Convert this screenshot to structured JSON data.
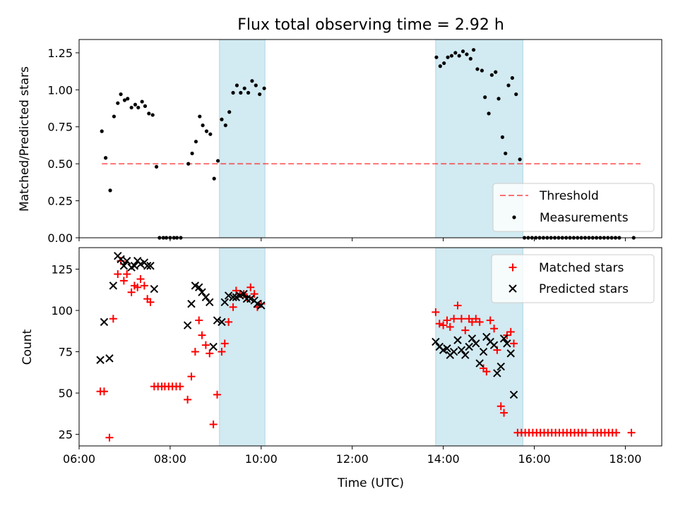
{
  "title": "Flux total observing time = 2.92 h",
  "colors": {
    "shade": "#add8e6",
    "threshold": "#ff0000",
    "measurement": "#000000",
    "matched": "#ff0000",
    "predicted": "#000000"
  },
  "chart_data": [
    {
      "type": "scatter",
      "panel": "top",
      "ylabel": "Matched/Predicted stars",
      "ylim": [
        0,
        1.34
      ],
      "yticks": [
        "0.00",
        "0.25",
        "0.50",
        "0.75",
        "1.00",
        "1.25"
      ],
      "xlim": [
        "06:00",
        "18:48"
      ],
      "legend": {
        "placement": "lower-right",
        "entries": [
          "Threshold",
          "Measurements"
        ]
      },
      "threshold": {
        "name": "Threshold",
        "y": 0.5,
        "x_range": [
          "06:30",
          "18:20"
        ]
      },
      "shaded_intervals": [
        [
          "09:05",
          "10:05"
        ],
        [
          "13:50",
          "15:45"
        ]
      ],
      "series": [
        {
          "name": "Measurements",
          "points": [
            [
              "06:30",
              0.72
            ],
            [
              "06:35",
              0.54
            ],
            [
              "06:41",
              0.32
            ],
            [
              "06:46",
              0.82
            ],
            [
              "06:51",
              0.91
            ],
            [
              "06:55",
              0.97
            ],
            [
              "07:00",
              0.93
            ],
            [
              "07:04",
              0.94
            ],
            [
              "07:09",
              0.88
            ],
            [
              "07:14",
              0.9
            ],
            [
              "07:18",
              0.88
            ],
            [
              "07:23",
              0.92
            ],
            [
              "07:27",
              0.89
            ],
            [
              "07:32",
              0.84
            ],
            [
              "07:37",
              0.83
            ],
            [
              "07:42",
              0.48
            ],
            [
              "07:46",
              0.0
            ],
            [
              "07:51",
              0.0
            ],
            [
              "07:55",
              0.0
            ],
            [
              "08:00",
              0.0
            ],
            [
              "08:05",
              0.0
            ],
            [
              "08:09",
              0.0
            ],
            [
              "08:14",
              0.0
            ],
            [
              "08:24",
              0.5
            ],
            [
              "08:29",
              0.57
            ],
            [
              "08:34",
              0.65
            ],
            [
              "08:39",
              0.82
            ],
            [
              "08:43",
              0.76
            ],
            [
              "08:48",
              0.72
            ],
            [
              "08:53",
              0.7
            ],
            [
              "08:58",
              0.4
            ],
            [
              "09:03",
              0.52
            ],
            [
              "09:08",
              0.8
            ],
            [
              "09:13",
              0.76
            ],
            [
              "09:18",
              0.85
            ],
            [
              "09:23",
              0.98
            ],
            [
              "09:28",
              1.03
            ],
            [
              "09:33",
              0.98
            ],
            [
              "09:38",
              1.01
            ],
            [
              "09:43",
              0.98
            ],
            [
              "09:48",
              1.06
            ],
            [
              "09:53",
              1.03
            ],
            [
              "09:58",
              0.97
            ],
            [
              "10:04",
              1.01
            ],
            [
              "13:51",
              1.22
            ],
            [
              "13:56",
              1.16
            ],
            [
              "14:01",
              1.18
            ],
            [
              "14:06",
              1.22
            ],
            [
              "14:11",
              1.23
            ],
            [
              "14:16",
              1.25
            ],
            [
              "14:21",
              1.23
            ],
            [
              "14:26",
              1.26
            ],
            [
              "14:31",
              1.24
            ],
            [
              "14:36",
              1.21
            ],
            [
              "14:40",
              1.27
            ],
            [
              "14:45",
              1.14
            ],
            [
              "14:51",
              1.13
            ],
            [
              "14:55",
              0.95
            ],
            [
              "15:00",
              0.84
            ],
            [
              "15:04",
              1.1
            ],
            [
              "15:09",
              1.12
            ],
            [
              "15:13",
              0.94
            ],
            [
              "15:18",
              0.68
            ],
            [
              "15:22",
              0.57
            ],
            [
              "15:26",
              1.03
            ],
            [
              "15:31",
              1.08
            ],
            [
              "15:36",
              0.97
            ],
            [
              "15:41",
              0.53
            ],
            [
              "15:47",
              0.0
            ],
            [
              "15:52",
              0.0
            ],
            [
              "15:57",
              0.0
            ],
            [
              "16:02",
              0.0
            ],
            [
              "16:07",
              0.0
            ],
            [
              "16:12",
              0.0
            ],
            [
              "16:17",
              0.0
            ],
            [
              "16:22",
              0.0
            ],
            [
              "16:27",
              0.0
            ],
            [
              "16:32",
              0.0
            ],
            [
              "16:37",
              0.0
            ],
            [
              "16:42",
              0.0
            ],
            [
              "16:47",
              0.0
            ],
            [
              "16:52",
              0.0
            ],
            [
              "16:57",
              0.0
            ],
            [
              "17:02",
              0.0
            ],
            [
              "17:07",
              0.0
            ],
            [
              "17:12",
              0.0
            ],
            [
              "17:17",
              0.0
            ],
            [
              "17:22",
              0.0
            ],
            [
              "17:27",
              0.0
            ],
            [
              "17:32",
              0.0
            ],
            [
              "17:37",
              0.0
            ],
            [
              "17:42",
              0.0
            ],
            [
              "17:47",
              0.0
            ],
            [
              "17:52",
              0.0
            ],
            [
              "18:11",
              0.0
            ]
          ]
        }
      ]
    },
    {
      "type": "scatter",
      "panel": "bottom",
      "xlabel": "Time (UTC)",
      "ylabel": "Count",
      "ylim": [
        18,
        138
      ],
      "yticks": [
        25,
        50,
        75,
        100,
        125
      ],
      "xlim": [
        "06:00",
        "18:48"
      ],
      "xticks": [
        "06:00",
        "08:00",
        "10:00",
        "12:00",
        "14:00",
        "16:00",
        "18:00"
      ],
      "legend": {
        "placement": "upper-right",
        "entries": [
          "Matched stars",
          "Predicted stars"
        ]
      },
      "shaded_intervals": [
        [
          "09:05",
          "10:05"
        ],
        [
          "13:50",
          "15:45"
        ]
      ],
      "series": [
        {
          "name": "Matched stars",
          "marker": "+",
          "points": [
            [
              "06:28",
              51
            ],
            [
              "06:33",
              51
            ],
            [
              "06:40",
              23
            ],
            [
              "06:45",
              95
            ],
            [
              "06:51",
              122
            ],
            [
              "06:55",
              130
            ],
            [
              "06:59",
              118
            ],
            [
              "07:03",
              122
            ],
            [
              "07:09",
              111
            ],
            [
              "07:13",
              115
            ],
            [
              "07:17",
              114
            ],
            [
              "07:21",
              119
            ],
            [
              "07:26",
              115
            ],
            [
              "07:30",
              107
            ],
            [
              "07:34",
              105
            ],
            [
              "07:39",
              54
            ],
            [
              "07:44",
              54
            ],
            [
              "07:49",
              54
            ],
            [
              "07:53",
              54
            ],
            [
              "07:58",
              54
            ],
            [
              "08:03",
              54
            ],
            [
              "08:08",
              54
            ],
            [
              "08:13",
              54
            ],
            [
              "08:23",
              46
            ],
            [
              "08:28",
              60
            ],
            [
              "08:33",
              75
            ],
            [
              "08:38",
              94
            ],
            [
              "08:42",
              85
            ],
            [
              "08:47",
              79
            ],
            [
              "08:52",
              74
            ],
            [
              "08:57",
              31
            ],
            [
              "09:02",
              49
            ],
            [
              "09:08",
              75
            ],
            [
              "09:12",
              80
            ],
            [
              "09:17",
              93
            ],
            [
              "09:23",
              102
            ],
            [
              "09:27",
              112
            ],
            [
              "09:32",
              110
            ],
            [
              "09:37",
              110
            ],
            [
              "09:41",
              108
            ],
            [
              "09:46",
              114
            ],
            [
              "09:51",
              110
            ],
            [
              "09:55",
              102
            ],
            [
              "10:00",
              104
            ],
            [
              "13:50",
              99
            ],
            [
              "13:55",
              92
            ],
            [
              "14:00",
              91
            ],
            [
              "14:05",
              94
            ],
            [
              "14:09",
              90
            ],
            [
              "14:14",
              95
            ],
            [
              "14:19",
              103
            ],
            [
              "14:24",
              95
            ],
            [
              "14:29",
              88
            ],
            [
              "14:34",
              95
            ],
            [
              "14:38",
              93
            ],
            [
              "14:43",
              95
            ],
            [
              "14:48",
              93
            ],
            [
              "14:53",
              65
            ],
            [
              "14:57",
              63
            ],
            [
              "15:02",
              94
            ],
            [
              "15:07",
              89
            ],
            [
              "15:11",
              76
            ],
            [
              "15:16",
              42
            ],
            [
              "15:20",
              38
            ],
            [
              "15:24",
              85
            ],
            [
              "15:29",
              87
            ],
            [
              "15:33",
              80
            ],
            [
              "15:38",
              26
            ],
            [
              "15:43",
              26
            ],
            [
              "15:48",
              26
            ],
            [
              "15:53",
              26
            ],
            [
              "15:58",
              26
            ],
            [
              "16:03",
              26
            ],
            [
              "16:08",
              26
            ],
            [
              "16:13",
              26
            ],
            [
              "16:18",
              26
            ],
            [
              "16:23",
              26
            ],
            [
              "16:28",
              26
            ],
            [
              "16:33",
              26
            ],
            [
              "16:38",
              26
            ],
            [
              "16:43",
              26
            ],
            [
              "16:48",
              26
            ],
            [
              "16:53",
              26
            ],
            [
              "16:58",
              26
            ],
            [
              "17:03",
              26
            ],
            [
              "17:08",
              26
            ],
            [
              "17:18",
              26
            ],
            [
              "17:23",
              26
            ],
            [
              "17:28",
              26
            ],
            [
              "17:33",
              26
            ],
            [
              "17:38",
              26
            ],
            [
              "17:43",
              26
            ],
            [
              "17:48",
              26
            ],
            [
              "18:08",
              26
            ]
          ]
        },
        {
          "name": "Predicted stars",
          "marker": "x",
          "points": [
            [
              "06:28",
              70
            ],
            [
              "06:33",
              93
            ],
            [
              "06:40",
              71
            ],
            [
              "06:45",
              115
            ],
            [
              "06:51",
              133
            ],
            [
              "06:55",
              131
            ],
            [
              "06:59",
              127
            ],
            [
              "07:03",
              130
            ],
            [
              "07:09",
              126
            ],
            [
              "07:13",
              127
            ],
            [
              "07:17",
              130
            ],
            [
              "07:21",
              128
            ],
            [
              "07:26",
              129
            ],
            [
              "07:30",
              127
            ],
            [
              "07:34",
              127
            ],
            [
              "07:39",
              113
            ],
            [
              "08:23",
              91
            ],
            [
              "08:28",
              104
            ],
            [
              "08:33",
              115
            ],
            [
              "08:38",
              114
            ],
            [
              "08:42",
              111
            ],
            [
              "08:47",
              108
            ],
            [
              "08:52",
              105
            ],
            [
              "08:57",
              78
            ],
            [
              "09:02",
              94
            ],
            [
              "09:08",
              93
            ],
            [
              "09:12",
              105
            ],
            [
              "09:17",
              109
            ],
            [
              "09:23",
              108
            ],
            [
              "09:27",
              108
            ],
            [
              "09:32",
              109
            ],
            [
              "09:37",
              110
            ],
            [
              "09:41",
              107
            ],
            [
              "09:46",
              107
            ],
            [
              "09:51",
              106
            ],
            [
              "09:55",
              104
            ],
            [
              "10:00",
              103
            ],
            [
              "13:50",
              81
            ],
            [
              "13:55",
              78
            ],
            [
              "14:00",
              76
            ],
            [
              "14:05",
              77
            ],
            [
              "14:09",
              73
            ],
            [
              "14:14",
              75
            ],
            [
              "14:19",
              82
            ],
            [
              "14:24",
              76
            ],
            [
              "14:29",
              73
            ],
            [
              "14:34",
              78
            ],
            [
              "14:38",
              83
            ],
            [
              "14:43",
              80
            ],
            [
              "14:48",
              68
            ],
            [
              "14:53",
              75
            ],
            [
              "14:57",
              84
            ],
            [
              "15:02",
              81
            ],
            [
              "15:07",
              79
            ],
            [
              "15:11",
              62
            ],
            [
              "15:16",
              66
            ],
            [
              "15:20",
              83
            ],
            [
              "15:24",
              80
            ],
            [
              "15:29",
              74
            ],
            [
              "15:33",
              49
            ]
          ]
        }
      ]
    }
  ]
}
